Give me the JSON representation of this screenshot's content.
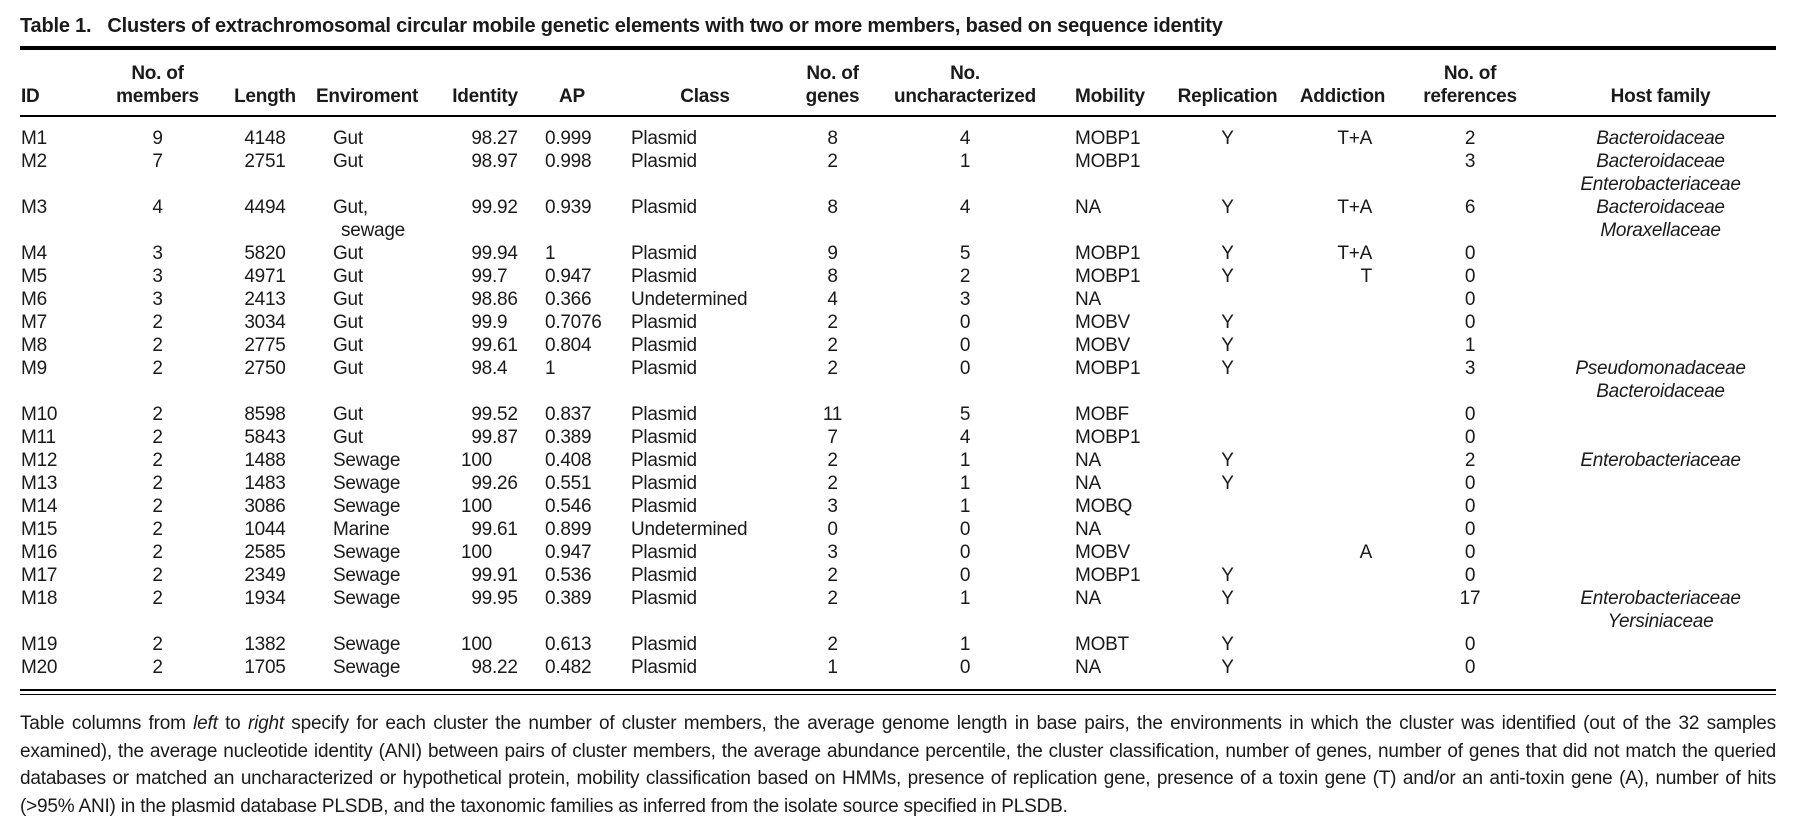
{
  "title": {
    "label": "Table 1.",
    "text": "Clusters of extrachromosomal circular mobile genetic elements with two or more members, based on sequence identity"
  },
  "table": {
    "columns": [
      {
        "key": "id",
        "label_lines": [
          "ID"
        ]
      },
      {
        "key": "members",
        "label_lines": [
          "No. of",
          "members"
        ]
      },
      {
        "key": "length",
        "label_lines": [
          "Length"
        ]
      },
      {
        "key": "environment",
        "label_lines": [
          "Enviroment"
        ]
      },
      {
        "key": "identity",
        "label_lines": [
          "Identity"
        ]
      },
      {
        "key": "ap",
        "label_lines": [
          "AP"
        ]
      },
      {
        "key": "class",
        "label_lines": [
          "Class"
        ]
      },
      {
        "key": "genes",
        "label_lines": [
          "No. of",
          "genes"
        ]
      },
      {
        "key": "uncharacterized",
        "label_lines": [
          "No.",
          "uncharacterized"
        ]
      },
      {
        "key": "mobility",
        "label_lines": [
          "Mobility"
        ]
      },
      {
        "key": "replication",
        "label_lines": [
          "Replication"
        ]
      },
      {
        "key": "addiction",
        "label_lines": [
          "Addiction"
        ]
      },
      {
        "key": "references",
        "label_lines": [
          "No. of",
          "references"
        ]
      },
      {
        "key": "host",
        "label_lines": [
          "Host family"
        ]
      }
    ],
    "rows": [
      {
        "id": "M1",
        "members": "9",
        "length": "4148",
        "environment": "Gut",
        "identity": "98.27",
        "ap": "0.999",
        "class": "Plasmid",
        "genes": "8",
        "uncharacterized": "4",
        "mobility": "MOBP1",
        "replication": "Y",
        "addiction": "T+A",
        "references": "2",
        "host": [
          "Bacteroidaceae"
        ]
      },
      {
        "id": "M2",
        "members": "7",
        "length": "2751",
        "environment": "Gut",
        "identity": "98.97",
        "ap": "0.998",
        "class": "Plasmid",
        "genes": "2",
        "uncharacterized": "1",
        "mobility": "MOBP1",
        "replication": "",
        "addiction": "",
        "references": "3",
        "host": [
          "Bacteroidaceae",
          "Enterobacteriaceae"
        ]
      },
      {
        "id": "M3",
        "members": "4",
        "length": "4494",
        "environment": [
          "Gut,",
          "sewage"
        ],
        "identity": "99.92",
        "ap": "0.939",
        "class": "Plasmid",
        "genes": "8",
        "uncharacterized": "4",
        "mobility": "NA",
        "replication": "Y",
        "addiction": "T+A",
        "references": "6",
        "host": [
          "Bacteroidaceae",
          "Moraxellaceae"
        ]
      },
      {
        "id": "M4",
        "members": "3",
        "length": "5820",
        "environment": "Gut",
        "identity": "99.94",
        "ap": "1",
        "class": "Plasmid",
        "genes": "9",
        "uncharacterized": "5",
        "mobility": "MOBP1",
        "replication": "Y",
        "addiction": "T+A",
        "references": "0",
        "host": []
      },
      {
        "id": "M5",
        "members": "3",
        "length": "4971",
        "environment": "Gut",
        "identity": "99.7",
        "ap": "0.947",
        "class": "Plasmid",
        "genes": "8",
        "uncharacterized": "2",
        "mobility": "MOBP1",
        "replication": "Y",
        "addiction": "T",
        "references": "0",
        "host": []
      },
      {
        "id": "M6",
        "members": "3",
        "length": "2413",
        "environment": "Gut",
        "identity": "98.86",
        "ap": "0.366",
        "class": "Undetermined",
        "genes": "4",
        "uncharacterized": "3",
        "mobility": "NA",
        "replication": "",
        "addiction": "",
        "references": "0",
        "host": []
      },
      {
        "id": "M7",
        "members": "2",
        "length": "3034",
        "environment": "Gut",
        "identity": "99.9",
        "ap": "0.7076",
        "class": "Plasmid",
        "genes": "2",
        "uncharacterized": "0",
        "mobility": "MOBV",
        "replication": "Y",
        "addiction": "",
        "references": "0",
        "host": []
      },
      {
        "id": "M8",
        "members": "2",
        "length": "2775",
        "environment": "Gut",
        "identity": "99.61",
        "ap": "0.804",
        "class": "Plasmid",
        "genes": "2",
        "uncharacterized": "0",
        "mobility": "MOBV",
        "replication": "Y",
        "addiction": "",
        "references": "1",
        "host": []
      },
      {
        "id": "M9",
        "members": "2",
        "length": "2750",
        "environment": "Gut",
        "identity": "98.4",
        "ap": "1",
        "class": "Plasmid",
        "genes": "2",
        "uncharacterized": "0",
        "mobility": "MOBP1",
        "replication": "Y",
        "addiction": "",
        "references": "3",
        "host": [
          "Pseudomonadaceae",
          "Bacteroidaceae"
        ]
      },
      {
        "id": "M10",
        "members": "2",
        "length": "8598",
        "environment": "Gut",
        "identity": "99.52",
        "ap": "0.837",
        "class": "Plasmid",
        "genes": "11",
        "uncharacterized": "5",
        "mobility": "MOBF",
        "replication": "",
        "addiction": "",
        "references": "0",
        "host": []
      },
      {
        "id": "M11",
        "members": "2",
        "length": "5843",
        "environment": "Gut",
        "identity": "99.87",
        "ap": "0.389",
        "class": "Plasmid",
        "genes": "7",
        "uncharacterized": "4",
        "mobility": "MOBP1",
        "replication": "",
        "addiction": "",
        "references": "0",
        "host": []
      },
      {
        "id": "M12",
        "members": "2",
        "length": "1488",
        "environment": "Sewage",
        "identity": "100",
        "ap": "0.408",
        "class": "Plasmid",
        "genes": "2",
        "uncharacterized": "1",
        "mobility": "NA",
        "replication": "Y",
        "addiction": "",
        "references": "2",
        "host": [
          "Enterobacteriaceae"
        ]
      },
      {
        "id": "M13",
        "members": "2",
        "length": "1483",
        "environment": "Sewage",
        "identity": "99.26",
        "ap": "0.551",
        "class": "Plasmid",
        "genes": "2",
        "uncharacterized": "1",
        "mobility": "NA",
        "replication": "Y",
        "addiction": "",
        "references": "0",
        "host": []
      },
      {
        "id": "M14",
        "members": "2",
        "length": "3086",
        "environment": "Sewage",
        "identity": "100",
        "ap": "0.546",
        "class": "Plasmid",
        "genes": "3",
        "uncharacterized": "1",
        "mobility": "MOBQ",
        "replication": "",
        "addiction": "",
        "references": "0",
        "host": []
      },
      {
        "id": "M15",
        "members": "2",
        "length": "1044",
        "environment": "Marine",
        "identity": "99.61",
        "ap": "0.899",
        "class": "Undetermined",
        "genes": "0",
        "uncharacterized": "0",
        "mobility": "NA",
        "replication": "",
        "addiction": "",
        "references": "0",
        "host": []
      },
      {
        "id": "M16",
        "members": "2",
        "length": "2585",
        "environment": "Sewage",
        "identity": "100",
        "ap": "0.947",
        "class": "Plasmid",
        "genes": "3",
        "uncharacterized": "0",
        "mobility": "MOBV",
        "replication": "",
        "addiction": "A",
        "references": "0",
        "host": []
      },
      {
        "id": "M17",
        "members": "2",
        "length": "2349",
        "environment": "Sewage",
        "identity": "99.91",
        "ap": "0.536",
        "class": "Plasmid",
        "genes": "2",
        "uncharacterized": "0",
        "mobility": "MOBP1",
        "replication": "Y",
        "addiction": "",
        "references": "0",
        "host": []
      },
      {
        "id": "M18",
        "members": "2",
        "length": "1934",
        "environment": "Sewage",
        "identity": "99.95",
        "ap": "0.389",
        "class": "Plasmid",
        "genes": "2",
        "uncharacterized": "1",
        "mobility": "NA",
        "replication": "Y",
        "addiction": "",
        "references": "17",
        "host": [
          "Enterobacteriaceae",
          "Yersiniaceae"
        ]
      },
      {
        "id": "M19",
        "members": "2",
        "length": "1382",
        "environment": "Sewage",
        "identity": "100",
        "ap": "0.613",
        "class": "Plasmid",
        "genes": "2",
        "uncharacterized": "1",
        "mobility": "MOBT",
        "replication": "Y",
        "addiction": "",
        "references": "0",
        "host": []
      },
      {
        "id": "M20",
        "members": "2",
        "length": "1705",
        "environment": "Sewage",
        "identity": "98.22",
        "ap": "0.482",
        "class": "Plasmid",
        "genes": "1",
        "uncharacterized": "0",
        "mobility": "NA",
        "replication": "Y",
        "addiction": "",
        "references": "0",
        "host": []
      }
    ]
  },
  "caption": {
    "parts": [
      {
        "text": "Table columns from "
      },
      {
        "text": "left",
        "italic": true
      },
      {
        "text": " to "
      },
      {
        "text": "right",
        "italic": true
      },
      {
        "text": " specify for each cluster the number of cluster members, the average genome length in base pairs, the environments in which the cluster was identified (out of the 32 samples examined), the average nucleotide identity (ANI) between pairs of cluster members, the average abundance percentile, the cluster classification, number of genes, number of genes that did not match the queried databases or matched an uncharacterized or hypothetical protein, mobility classification based on HMMs, presence of replication gene, presence of a toxin gene (T) and/or an anti-toxin gene (A), number of hits (>95% ANI) in the plasmid database PLSDB, and the taxonomic families as inferred from the isolate source specified in PLSDB."
      }
    ]
  }
}
